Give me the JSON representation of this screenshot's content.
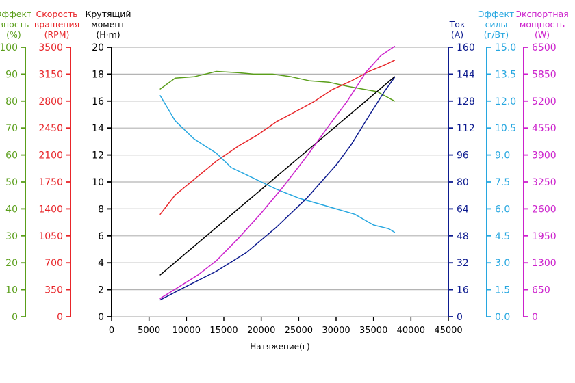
{
  "chart_data": {
    "type": "line",
    "xlabel": "Натяжение(г)",
    "x_axis": {
      "min": 0,
      "max": 45000,
      "ticks": [
        0,
        5000,
        10000,
        15000,
        20000,
        25000,
        30000,
        35000,
        40000,
        45000
      ]
    },
    "grid": "horizontal",
    "axes": [
      {
        "id": "eff",
        "title": [
          "Эффект",
          "вность",
          "(%)"
        ],
        "color": "#5a9e1a",
        "min": 0,
        "max": 100,
        "ticks": [
          0,
          10,
          20,
          30,
          40,
          50,
          60,
          70,
          80,
          90,
          100
        ]
      },
      {
        "id": "rpm",
        "title": [
          "Скорость",
          "вращения",
          "(RPM)"
        ],
        "color": "#e8262a",
        "min": 0,
        "max": 3500,
        "ticks": [
          0,
          350,
          700,
          1050,
          1400,
          1750,
          2100,
          2450,
          2800,
          3150,
          3500
        ]
      },
      {
        "id": "torque",
        "title": [
          "Крутящий",
          "момент",
          "(Н·m)"
        ],
        "color": "#000000",
        "min": 0,
        "max": 20,
        "ticks": [
          0,
          2,
          4,
          6,
          8,
          10,
          12,
          14,
          16,
          18,
          20
        ]
      },
      {
        "id": "current",
        "title": [
          "Ток",
          "(A)"
        ],
        "color": "#0d1b8f",
        "min": 0,
        "max": 160,
        "ticks": [
          0,
          16,
          32,
          48,
          64,
          80,
          96,
          112,
          128,
          144,
          160
        ]
      },
      {
        "id": "force",
        "title": [
          "Эффект",
          "силы",
          "(г/Вт)"
        ],
        "color": "#27a7e0",
        "min": 0,
        "max": 15,
        "ticks": [
          "0.0",
          "1.5",
          "3.0",
          "4.5",
          "6.0",
          "7.5",
          "9.0",
          "10.5",
          "12.0",
          "13.5",
          "15.0"
        ]
      },
      {
        "id": "power",
        "title": [
          "Экспортная",
          "мощность",
          "(W)"
        ],
        "color": "#cc22cc",
        "min": 0,
        "max": 6500,
        "ticks": [
          0,
          650,
          1300,
          1950,
          2600,
          3250,
          3900,
          4550,
          5200,
          5850,
          6500
        ]
      }
    ],
    "series": [
      {
        "axis": "eff",
        "color": "#5a9e1a",
        "x": [
          6500,
          8500,
          11000,
          14000,
          17000,
          19000,
          21500,
          24000,
          26500,
          29000,
          31500,
          33500,
          35500,
          37800
        ],
        "y": [
          84.5,
          88.5,
          89,
          91,
          90.5,
          90,
          90,
          89,
          87.5,
          87,
          85.5,
          84.5,
          83.5,
          80
        ]
      },
      {
        "axis": "rpm",
        "color": "#e8262a",
        "x": [
          6500,
          8500,
          11000,
          14000,
          17000,
          19500,
          22000,
          24500,
          27000,
          29500,
          32000,
          34500,
          36500,
          37800
        ],
        "y": [
          1330,
          1580,
          1780,
          2020,
          2220,
          2360,
          2530,
          2660,
          2790,
          2950,
          3060,
          3190,
          3270,
          3330
        ]
      },
      {
        "axis": "torque",
        "color": "#000000",
        "x": [
          6500,
          37800
        ],
        "y": [
          3.1,
          17.8
        ]
      },
      {
        "axis": "current",
        "color": "#0d1b8f",
        "x": [
          6500,
          10000,
          14000,
          18000,
          22000,
          26000,
          30000,
          32000,
          34500,
          36500,
          37800
        ],
        "y": [
          10,
          18,
          27,
          38,
          53,
          70,
          90,
          102,
          120,
          134,
          142
        ]
      },
      {
        "axis": "force",
        "color": "#27a7e0",
        "x": [
          6500,
          8500,
          11000,
          14000,
          16000,
          19000,
          22000,
          25000,
          27500,
          30000,
          32500,
          35000,
          37000,
          37800
        ],
        "y": [
          12.3,
          10.9,
          9.9,
          9.1,
          8.3,
          7.7,
          7.1,
          6.6,
          6.3,
          6.0,
          5.7,
          5.1,
          4.9,
          4.7
        ]
      },
      {
        "axis": "power",
        "color": "#cc22cc",
        "x": [
          6500,
          9000,
          11500,
          14000,
          17000,
          20000,
          23000,
          26000,
          29000,
          31500,
          34000,
          36000,
          37800
        ],
        "y": [
          440,
          720,
          1000,
          1350,
          1900,
          2500,
          3150,
          3850,
          4600,
          5200,
          5900,
          6300,
          6520
        ]
      }
    ]
  }
}
